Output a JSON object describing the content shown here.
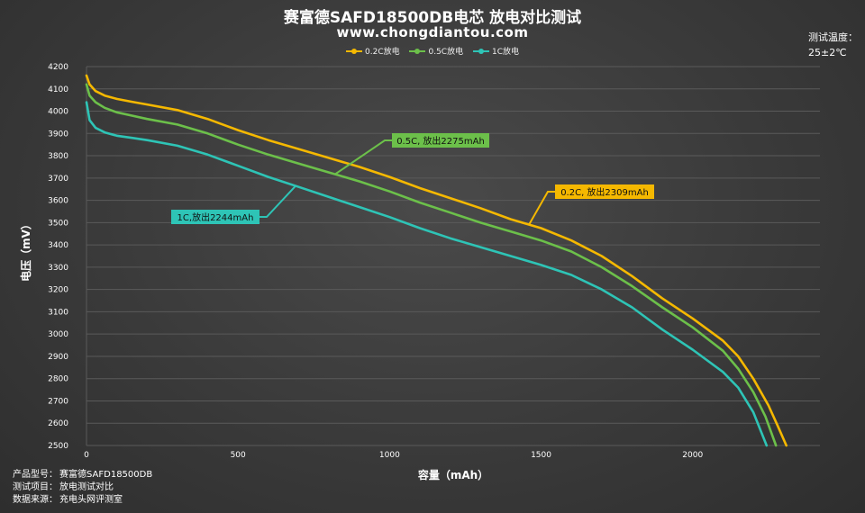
{
  "header": {
    "title": "赛富德SAFD18500DB电芯 放电对比测试",
    "subtitle": "www.chongdiantou.com",
    "temp_label": "测试温度：",
    "temp_value": "25±2℃"
  },
  "footer": {
    "rows": [
      {
        "key": "产品型号：",
        "value": "赛富德SAFD18500DB"
      },
      {
        "key": "测试项目：",
        "value": "放电测试对比"
      },
      {
        "key": "数据来源：",
        "value": "充电头网评测室"
      }
    ]
  },
  "colors": {
    "series_0_2c": "#f5b800",
    "series_0_5c": "#6cc04a",
    "series_1c": "#2ec4b6",
    "grid": "#5a5a5a"
  },
  "chart_data": {
    "type": "line",
    "title": "赛富德SAFD18500DB电芯 放电对比测试",
    "xlabel": "容量（mAh）",
    "ylabel": "电压（mV）",
    "xlim": [
      0,
      2420
    ],
    "ylim": [
      2500,
      4200
    ],
    "x_ticks": [
      0,
      500,
      1000,
      1500,
      2000
    ],
    "y_ticks": [
      2500,
      2600,
      2700,
      2800,
      2900,
      3000,
      3100,
      3200,
      3300,
      3400,
      3500,
      3600,
      3700,
      3800,
      3900,
      4000,
      4100,
      4200
    ],
    "grid": true,
    "legend_position": "top-center",
    "series": [
      {
        "name": "0.2C放电",
        "color": "#f5b800",
        "annotation": "0.2C, 放出2309mAh",
        "capacity": 2309,
        "points": [
          [
            0,
            4160
          ],
          [
            10,
            4120
          ],
          [
            30,
            4090
          ],
          [
            60,
            4070
          ],
          [
            100,
            4055
          ],
          [
            150,
            4042
          ],
          [
            200,
            4030
          ],
          [
            300,
            4005
          ],
          [
            400,
            3965
          ],
          [
            500,
            3915
          ],
          [
            600,
            3870
          ],
          [
            700,
            3830
          ],
          [
            800,
            3790
          ],
          [
            900,
            3750
          ],
          [
            1000,
            3705
          ],
          [
            1100,
            3655
          ],
          [
            1200,
            3610
          ],
          [
            1300,
            3565
          ],
          [
            1400,
            3515
          ],
          [
            1500,
            3475
          ],
          [
            1600,
            3420
          ],
          [
            1700,
            3350
          ],
          [
            1800,
            3260
          ],
          [
            1900,
            3160
          ],
          [
            2000,
            3070
          ],
          [
            2100,
            2970
          ],
          [
            2150,
            2900
          ],
          [
            2200,
            2800
          ],
          [
            2250,
            2680
          ],
          [
            2280,
            2590
          ],
          [
            2309,
            2500
          ]
        ]
      },
      {
        "name": "0.5C放电",
        "color": "#6cc04a",
        "annotation": "0.5C, 放出2275mAh",
        "capacity": 2275,
        "points": [
          [
            0,
            4120
          ],
          [
            10,
            4070
          ],
          [
            30,
            4040
          ],
          [
            60,
            4015
          ],
          [
            100,
            3995
          ],
          [
            150,
            3980
          ],
          [
            200,
            3965
          ],
          [
            300,
            3940
          ],
          [
            400,
            3900
          ],
          [
            500,
            3850
          ],
          [
            600,
            3805
          ],
          [
            700,
            3765
          ],
          [
            800,
            3725
          ],
          [
            900,
            3685
          ],
          [
            1000,
            3640
          ],
          [
            1100,
            3590
          ],
          [
            1200,
            3545
          ],
          [
            1300,
            3500
          ],
          [
            1400,
            3460
          ],
          [
            1500,
            3420
          ],
          [
            1600,
            3370
          ],
          [
            1700,
            3300
          ],
          [
            1800,
            3215
          ],
          [
            1900,
            3120
          ],
          [
            2000,
            3030
          ],
          [
            2100,
            2925
          ],
          [
            2150,
            2845
          ],
          [
            2200,
            2740
          ],
          [
            2240,
            2630
          ],
          [
            2275,
            2500
          ]
        ]
      },
      {
        "name": "1C放电",
        "color": "#2ec4b6",
        "annotation": "1C,放出2244mAh",
        "capacity": 2244,
        "points": [
          [
            0,
            4040
          ],
          [
            10,
            3960
          ],
          [
            30,
            3925
          ],
          [
            60,
            3905
          ],
          [
            100,
            3890
          ],
          [
            150,
            3880
          ],
          [
            200,
            3870
          ],
          [
            300,
            3845
          ],
          [
            400,
            3805
          ],
          [
            500,
            3755
          ],
          [
            600,
            3705
          ],
          [
            700,
            3660
          ],
          [
            800,
            3615
          ],
          [
            900,
            3570
          ],
          [
            1000,
            3525
          ],
          [
            1100,
            3475
          ],
          [
            1200,
            3430
          ],
          [
            1300,
            3390
          ],
          [
            1400,
            3350
          ],
          [
            1500,
            3310
          ],
          [
            1600,
            3265
          ],
          [
            1700,
            3200
          ],
          [
            1800,
            3120
          ],
          [
            1900,
            3020
          ],
          [
            2000,
            2930
          ],
          [
            2100,
            2830
          ],
          [
            2150,
            2760
          ],
          [
            2200,
            2650
          ],
          [
            2244,
            2500
          ]
        ]
      }
    ]
  }
}
